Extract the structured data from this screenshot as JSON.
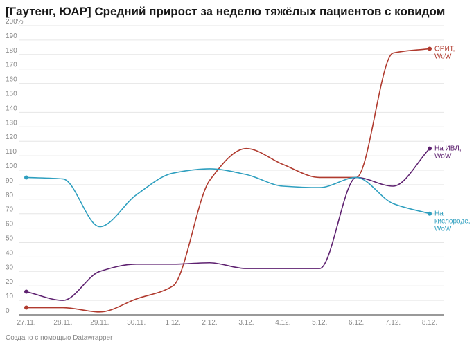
{
  "title": "[Гаутенг, ЮАР] Средний прирост за неделю тяжёлых пациентов с ковидом",
  "credit": "Создано с помощью Datawrapper",
  "chart_data": {
    "type": "line",
    "x": [
      "27.11.",
      "28.11.",
      "29.11.",
      "30.11.",
      "1.12.",
      "2.12.",
      "3.12.",
      "4.12.",
      "5.12.",
      "6.12.",
      "7.12.",
      "8.12."
    ],
    "ylim": [
      0,
      200
    ],
    "yticks": [
      0,
      10,
      20,
      30,
      40,
      50,
      60,
      70,
      80,
      90,
      100,
      110,
      120,
      130,
      140,
      150,
      160,
      170,
      180,
      190,
      200
    ],
    "ytick_labels": [
      "0",
      "10",
      "20",
      "30",
      "40",
      "50",
      "60",
      "70",
      "80",
      "90",
      "100",
      "110",
      "120",
      "130",
      "140",
      "150",
      "160",
      "170",
      "180",
      "190",
      "200%"
    ],
    "grid": true,
    "series": [
      {
        "label_lines": [
          "ОРИТ,",
          "WoW"
        ],
        "color": "#b03a2e",
        "values": [
          5,
          5,
          2,
          11,
          20,
          93,
          115,
          104,
          95,
          95,
          181,
          184
        ]
      },
      {
        "label_lines": [
          "На ИВЛ,",
          "WoW"
        ],
        "color": "#5e2170",
        "values": [
          16,
          10,
          30,
          35,
          35,
          36,
          32,
          32,
          32,
          95,
          89,
          115
        ]
      },
      {
        "label_lines": [
          "На",
          "кислороде,",
          "WoW"
        ],
        "color": "#2e9fbf",
        "values": [
          95,
          94,
          61,
          83,
          98,
          101,
          97,
          89,
          88,
          95,
          77,
          70
        ]
      }
    ]
  }
}
